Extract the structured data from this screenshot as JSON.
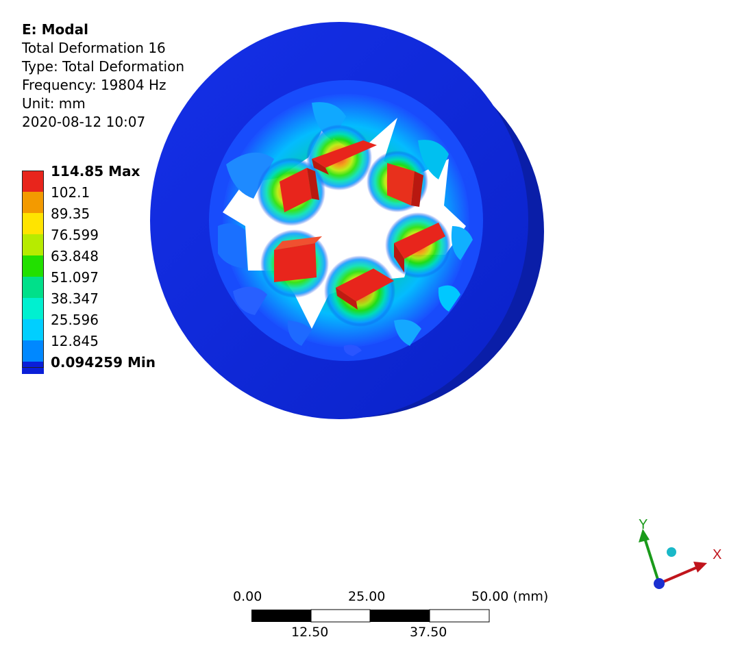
{
  "info": {
    "title": "E: Modal",
    "result_name": "Total Deformation 16",
    "type_line": "Type: Total Deformation",
    "frequency_line": "Frequency: 19804 Hz",
    "unit_line": "Unit: mm",
    "timestamp": "2020-08-12 10:07"
  },
  "legend": {
    "entries": [
      {
        "label": "114.85 Max",
        "color": "#e8251c",
        "bold": true
      },
      {
        "label": "102.1",
        "color": "#f39a00",
        "bold": false
      },
      {
        "label": "89.35",
        "color": "#ffe400",
        "bold": false
      },
      {
        "label": "76.599",
        "color": "#b7eb00",
        "bold": false
      },
      {
        "label": "63.848",
        "color": "#22e000",
        "bold": false
      },
      {
        "label": "51.097",
        "color": "#00e08a",
        "bold": false
      },
      {
        "label": "38.347",
        "color": "#00f0d0",
        "bold": false
      },
      {
        "label": "25.596",
        "color": "#00cfff",
        "bold": false
      },
      {
        "label": "12.845",
        "color": "#0088ff",
        "bold": false
      },
      {
        "label": "0.094259 Min",
        "color": "#0a1fd8",
        "bold": true
      }
    ]
  },
  "scale_bar": {
    "top_labels": [
      "0.00",
      "25.00",
      "50.00 (mm)"
    ],
    "bottom_labels": [
      "12.50",
      "37.50"
    ]
  },
  "triad": {
    "x_label": "X",
    "y_label": "Y",
    "x_color": "#c0141c",
    "y_color": "#1a9a1a",
    "z_color": "#1a2fd0"
  }
}
